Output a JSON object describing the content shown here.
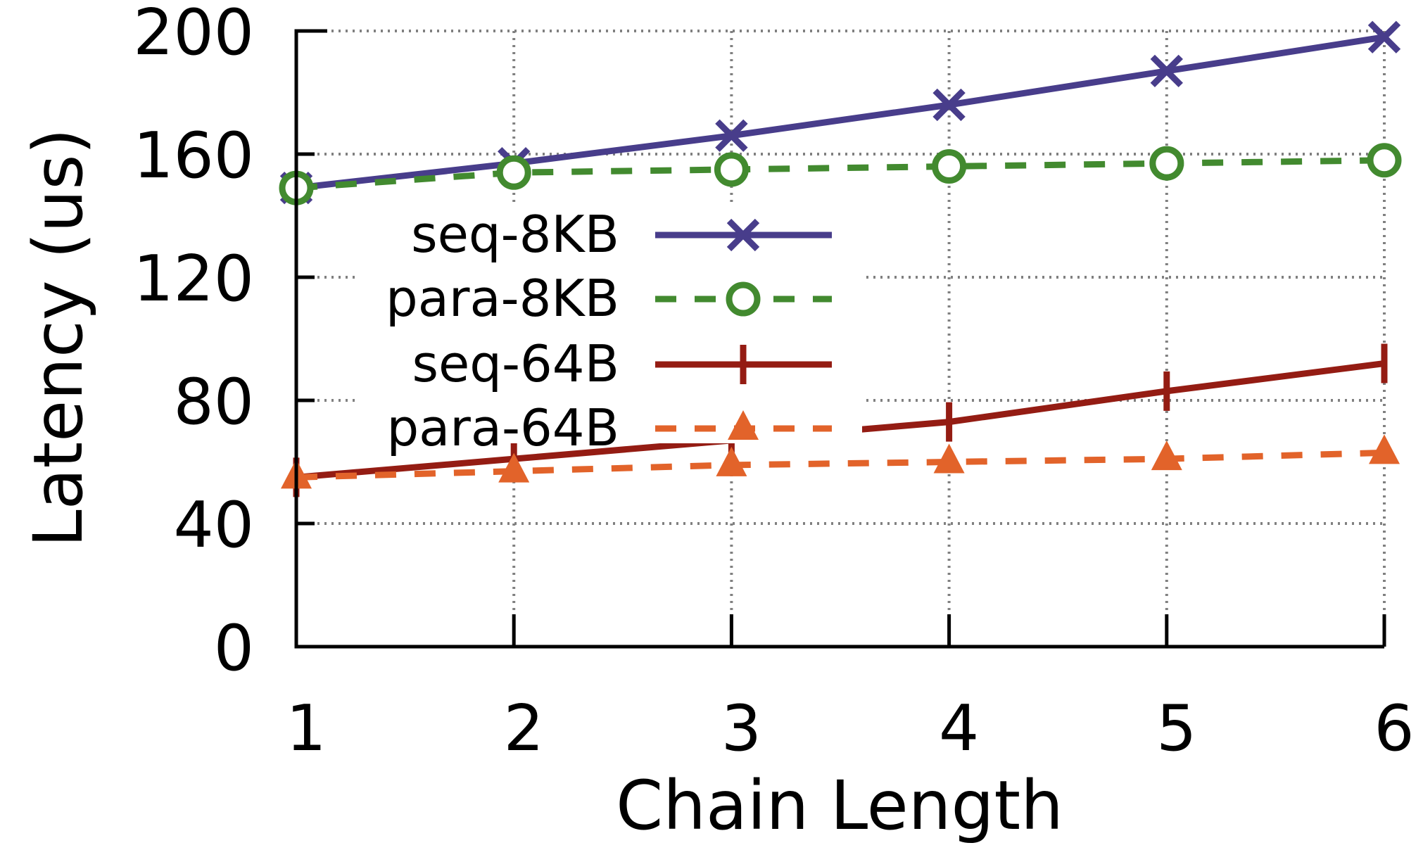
{
  "chart_data": {
    "type": "line",
    "title": "",
    "xlabel": "Chain Length",
    "ylabel": "Latency (us)",
    "x": [
      1,
      2,
      3,
      4,
      5,
      6
    ],
    "x_tick_labels": [
      "1",
      "2",
      "3",
      "4",
      "5",
      "6"
    ],
    "y_tick_labels": [
      "0",
      "40",
      "80",
      "120",
      "160",
      "200"
    ],
    "y_ticks": [
      0,
      40,
      80,
      120,
      160,
      200
    ],
    "xlim": [
      1,
      6
    ],
    "ylim": [
      0,
      200
    ],
    "grid": true,
    "legend_position": "center-left",
    "series": [
      {
        "name": "seq-8KB",
        "values": [
          149,
          157,
          166,
          176,
          187,
          198
        ],
        "color": "#483d8b",
        "dash": "solid",
        "marker": "x"
      },
      {
        "name": "para-8KB",
        "values": [
          149,
          154,
          155,
          156,
          157,
          158
        ],
        "color": "#428a2f",
        "dash": "dashed",
        "marker": "circle"
      },
      {
        "name": "seq-64B",
        "values": [
          55,
          61,
          67,
          73,
          83,
          92
        ],
        "color": "#941c13",
        "dash": "solid",
        "marker": "plus"
      },
      {
        "name": "para-64B",
        "values": [
          55,
          57,
          59,
          60,
          61,
          63
        ],
        "color": "#e2632a",
        "dash": "dashed",
        "marker": "triangle"
      }
    ]
  }
}
